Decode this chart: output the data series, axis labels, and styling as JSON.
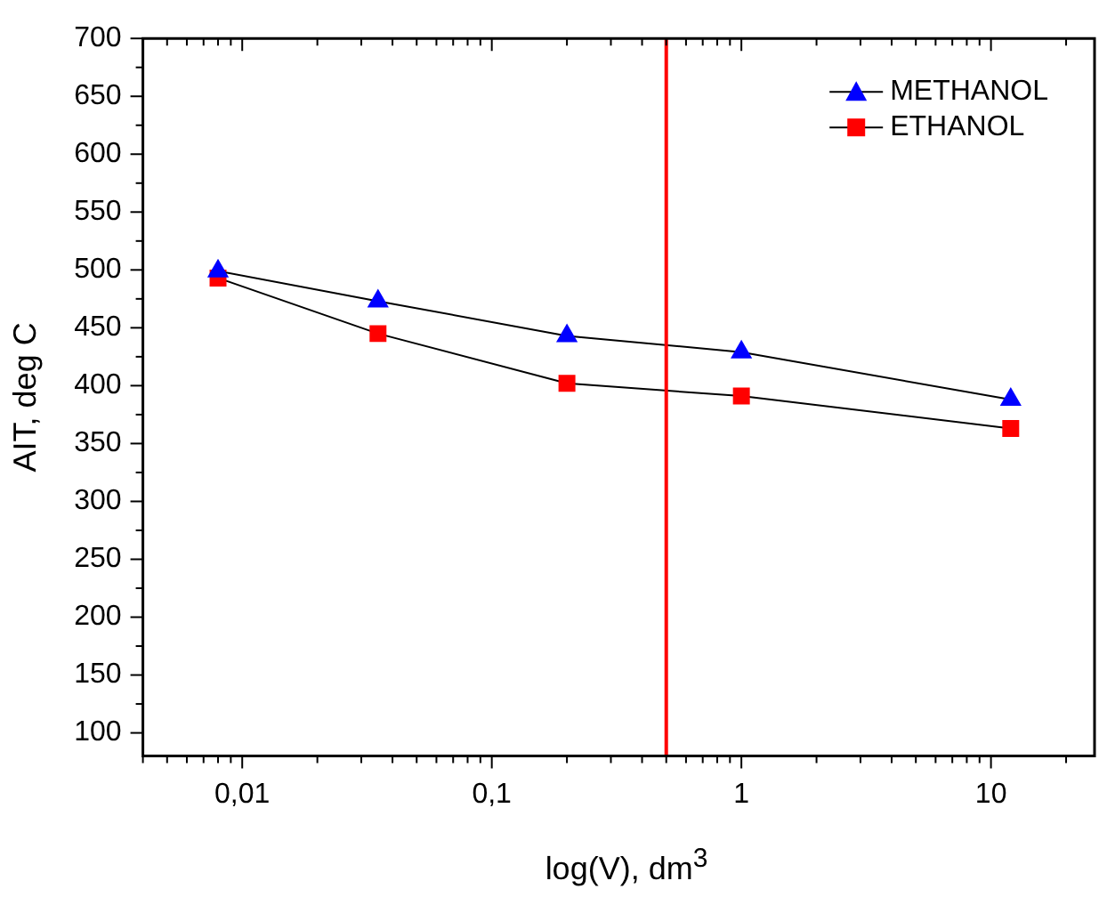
{
  "chart_data": {
    "type": "line",
    "xlabel": "log(V), dm$^{3}$",
    "ylabel": "AIT, deg C",
    "log": "x",
    "grid": false,
    "legend": "top right",
    "line_style": "solid",
    "x": [
      0.008,
      0.035,
      0.2,
      1,
      12
    ],
    "series": [
      {
        "name": "METHANOL",
        "color": "#0000ff",
        "marker": "triangle",
        "values": [
          499,
          473,
          443,
          429,
          388
        ]
      },
      {
        "name": "ETHANOL",
        "color": "#ff0000",
        "marker": "square",
        "values": [
          493,
          445,
          402,
          391,
          363
        ]
      }
    ],
    "xlim": [
      0.004,
      26
    ],
    "xticks": [
      {
        "value": 0.004,
        "label": null
      },
      {
        "value": 0.005,
        "label": null
      },
      {
        "value": 0.006,
        "label": null
      },
      {
        "value": 0.007,
        "label": null
      },
      {
        "value": 0.008,
        "label": null
      },
      {
        "value": 0.009,
        "label": null
      },
      {
        "value": 0.01,
        "label": "0,01"
      },
      {
        "value": 0.02,
        "label": null
      },
      {
        "value": 0.03,
        "label": null
      },
      {
        "value": 0.04,
        "label": null
      },
      {
        "value": 0.05,
        "label": null
      },
      {
        "value": 0.06,
        "label": null
      },
      {
        "value": 0.07,
        "label": null
      },
      {
        "value": 0.08,
        "label": null
      },
      {
        "value": 0.09,
        "label": null
      },
      {
        "value": 0.1,
        "label": "0,1"
      },
      {
        "value": 0.2,
        "label": null
      },
      {
        "value": 0.3,
        "label": null
      },
      {
        "value": 0.4,
        "label": null
      },
      {
        "value": 0.5,
        "label": null
      },
      {
        "value": 0.6,
        "label": null
      },
      {
        "value": 0.7,
        "label": null
      },
      {
        "value": 0.8,
        "label": null
      },
      {
        "value": 0.9,
        "label": null
      },
      1,
      {
        "value": 2,
        "label": null
      },
      {
        "value": 3,
        "label": null
      },
      {
        "value": 4,
        "label": null
      },
      {
        "value": 5,
        "label": null
      },
      {
        "value": 6,
        "label": null
      },
      {
        "value": 7,
        "label": null
      },
      {
        "value": 8,
        "label": null
      },
      {
        "value": 9,
        "label": null
      },
      10,
      {
        "value": 20,
        "label": null
      }
    ],
    "ylim": [
      80,
      700
    ],
    "yticks": [
      100,
      {
        "value": 125,
        "label": null
      },
      150,
      {
        "value": 175,
        "label": null
      },
      200,
      {
        "value": 225,
        "label": null
      },
      250,
      {
        "value": 275,
        "label": null
      },
      300,
      {
        "value": 325,
        "label": null
      },
      350,
      {
        "value": 375,
        "label": null
      },
      400,
      {
        "value": 425,
        "label": null
      },
      450,
      {
        "value": 475,
        "label": null
      },
      500,
      {
        "value": 525,
        "label": null
      },
      550,
      {
        "value": 575,
        "label": null
      },
      600,
      {
        "value": 625,
        "label": null
      },
      650,
      {
        "value": 675,
        "label": null
      },
      700
    ],
    "ref_lines": [
      {
        "axis": "x",
        "value": 0.5,
        "color": "#ff0000",
        "line_style": "solid"
      }
    ]
  }
}
